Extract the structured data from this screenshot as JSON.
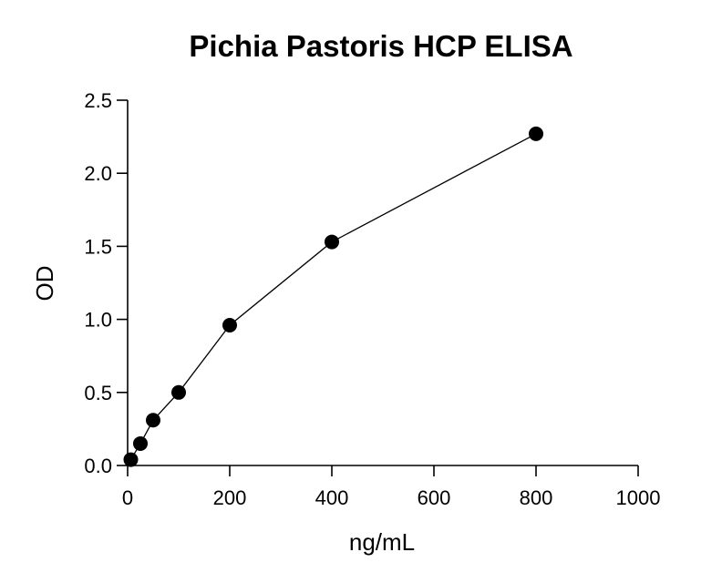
{
  "chart_data": {
    "type": "scatter",
    "title": "Pichia Pastoris HCP ELISA",
    "xlabel": "ng/mL",
    "ylabel": "OD",
    "xlim": [
      0,
      1000
    ],
    "ylim": [
      0,
      2.5
    ],
    "x_ticks": [
      0,
      200,
      400,
      600,
      800,
      1000
    ],
    "x_tick_labels": [
      "0",
      "200",
      "400",
      "600",
      "800",
      "1000"
    ],
    "y_ticks": [
      0,
      0.5,
      1.0,
      1.5,
      2.0,
      2.5
    ],
    "y_tick_labels": [
      "0.0",
      "0.5",
      "1.0",
      "1.5",
      "2.0",
      "2.5"
    ],
    "grid": false,
    "legend": "none",
    "connected": true,
    "series": [
      {
        "x": [
          6.25,
          25,
          50,
          100,
          200,
          400,
          800
        ],
        "y": [
          0.04,
          0.15,
          0.31,
          0.5,
          0.96,
          1.53,
          2.27
        ]
      }
    ]
  }
}
